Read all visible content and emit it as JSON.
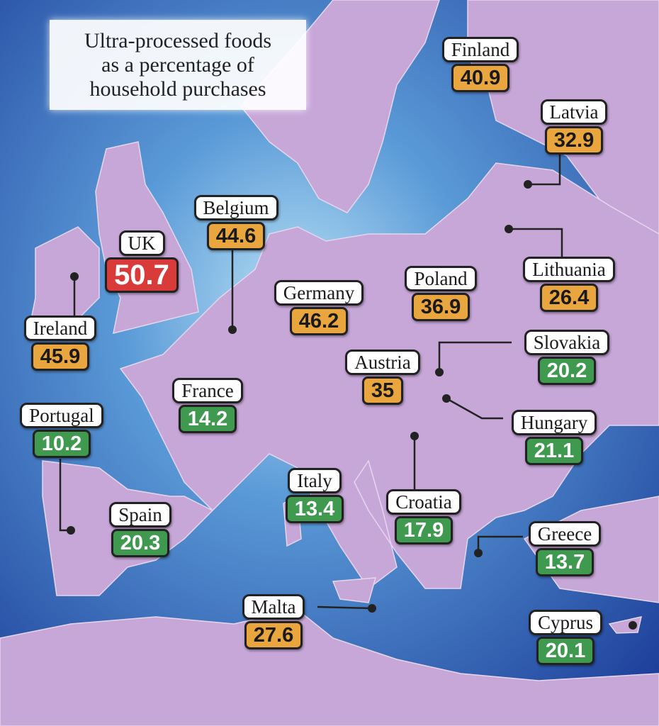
{
  "title": {
    "lines": [
      "Ultra-processed foods",
      "as a percentage of",
      "household purchases"
    ]
  },
  "colors": {
    "sea": "#2f64b4",
    "sea_light": "#a9d6f0",
    "land": "#c7a6d8",
    "land_dark": "#b48bc8",
    "high": "#d93a3a",
    "mid": "#e9a53e",
    "low": "#3f9a4f"
  },
  "countries": [
    {
      "name": "Finland",
      "value": "40.9",
      "level": "orange"
    },
    {
      "name": "Latvia",
      "value": "32.9",
      "level": "orange"
    },
    {
      "name": "Belgium",
      "value": "44.6",
      "level": "orange"
    },
    {
      "name": "UK",
      "value": "50.7",
      "level": "red"
    },
    {
      "name": "Ireland",
      "value": "45.9",
      "level": "orange"
    },
    {
      "name": "Germany",
      "value": "46.2",
      "level": "orange"
    },
    {
      "name": "Poland",
      "value": "36.9",
      "level": "orange"
    },
    {
      "name": "Lithuania",
      "value": "26.4",
      "level": "orange"
    },
    {
      "name": "Austria",
      "value": "35",
      "level": "orange"
    },
    {
      "name": "Slovakia",
      "value": "20.2",
      "level": "green"
    },
    {
      "name": "Hungary",
      "value": "21.1",
      "level": "green"
    },
    {
      "name": "France",
      "value": "14.2",
      "level": "green"
    },
    {
      "name": "Portugal",
      "value": "10.2",
      "level": "green"
    },
    {
      "name": "Italy",
      "value": "13.4",
      "level": "green"
    },
    {
      "name": "Croatia",
      "value": "17.9",
      "level": "green"
    },
    {
      "name": "Spain",
      "value": "20.3",
      "level": "green"
    },
    {
      "name": "Greece",
      "value": "13.7",
      "level": "green"
    },
    {
      "name": "Malta",
      "value": "27.6",
      "level": "orange"
    },
    {
      "name": "Cyprus",
      "value": "20.1",
      "level": "green"
    }
  ]
}
